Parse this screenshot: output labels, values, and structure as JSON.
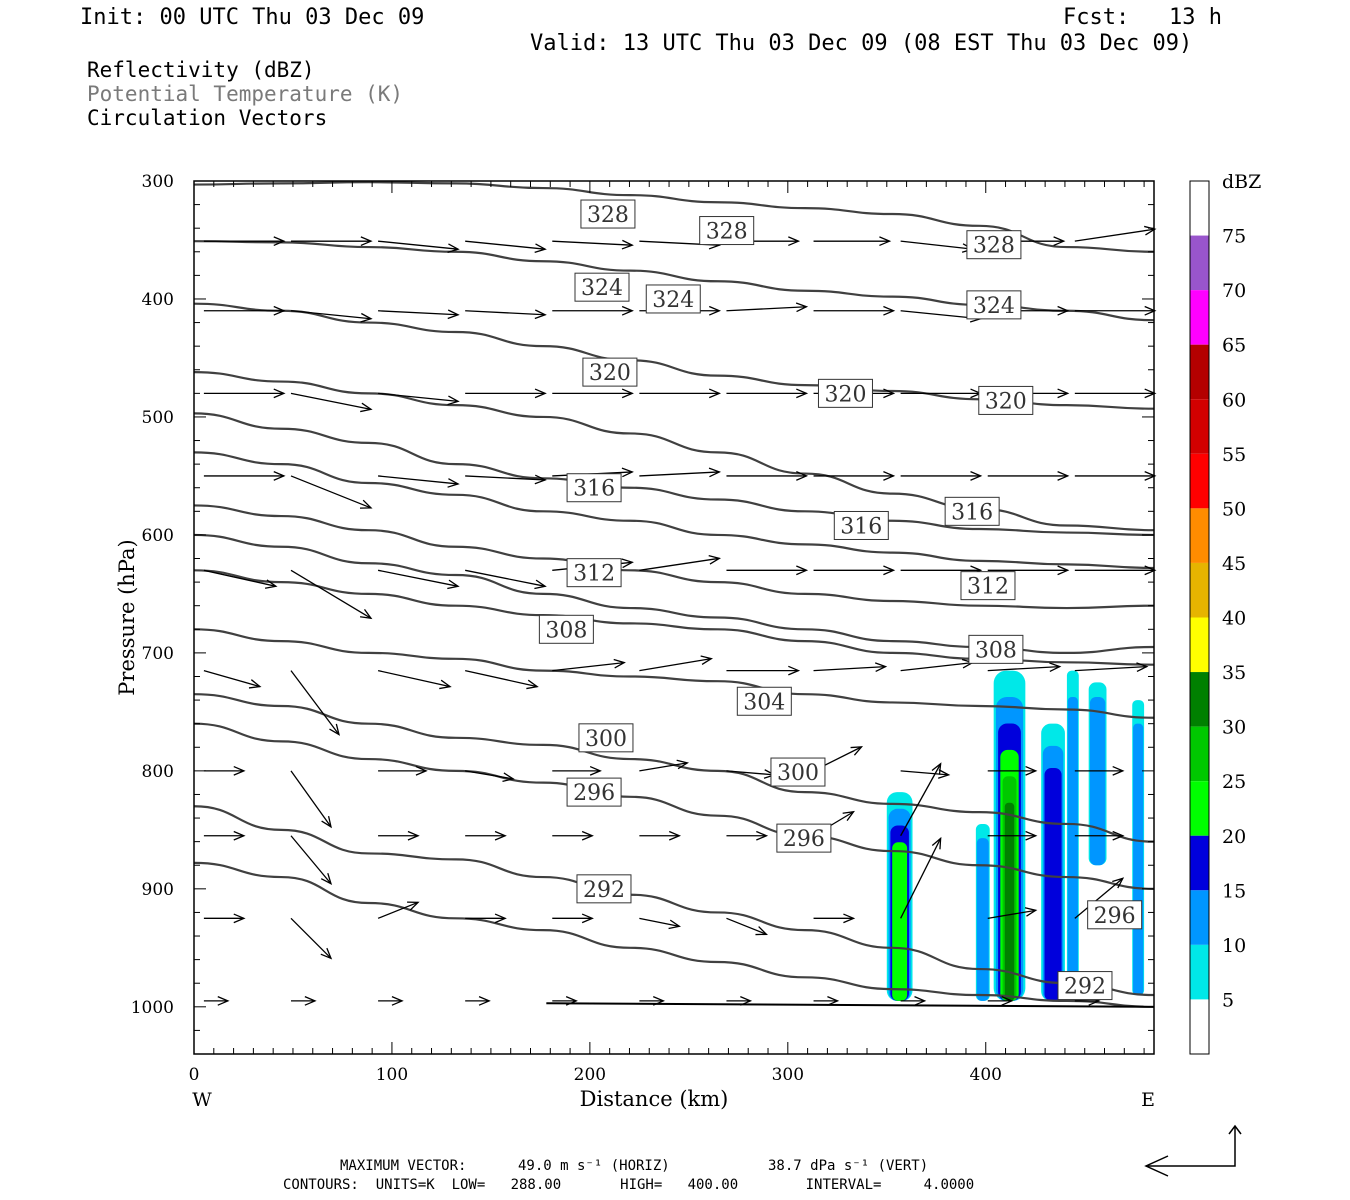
{
  "header": {
    "init": "Init: 00 UTC Thu 03 Dec 09",
    "fcst": "Fcst:   13 h",
    "valid": "Valid: 13 UTC Thu 03 Dec 09 (08 EST Thu 03 Dec 09)"
  },
  "fields": [
    "Reflectivity (dBZ)",
    "Potential Temperature (K)",
    "Circulation Vectors"
  ],
  "footer": {
    "max_vector_label": "MAXIMUM VECTOR:",
    "horiz": "49.0 m s⁻¹ (HORIZ)",
    "vert": "38.7 dPa s⁻¹ (VERT)",
    "contours": "CONTOURS:  UNITS=K  LOW=   288.00       HIGH=   400.00        INTERVAL=     4.0000"
  },
  "colors": {
    "contour": "#404040",
    "dbz": [
      "#ffffff",
      "#00e8e8",
      "#0096ff",
      "#0000dc",
      "#00ff00",
      "#00c800",
      "#008000",
      "#ffff00",
      "#e6b400",
      "#ff8c00",
      "#ff0000",
      "#d20000",
      "#b40000",
      "#ff00ff",
      "#9955cc",
      "#ffffff"
    ]
  },
  "chart_data": {
    "type": "cross-section",
    "xlabel": "Distance (km)",
    "ylabel": "Pressure (hPa)",
    "x_ends": [
      "W",
      "E"
    ],
    "xlim": [
      0,
      485
    ],
    "ylim": [
      1040,
      300
    ],
    "xticks": [
      0,
      100,
      200,
      300,
      400
    ],
    "yticks": [
      300,
      400,
      500,
      600,
      700,
      800,
      900,
      1000
    ],
    "colorbar": {
      "unit": "dBZ",
      "levels": [
        5,
        10,
        15,
        20,
        25,
        30,
        35,
        40,
        45,
        50,
        55,
        60,
        65,
        70,
        75
      ]
    },
    "contour_labels": [
      {
        "v": "328",
        "x": 197,
        "p": 328
      },
      {
        "v": "328",
        "x": 257,
        "p": 342
      },
      {
        "v": "328",
        "x": 392,
        "p": 354
      },
      {
        "v": "324",
        "x": 194,
        "p": 390
      },
      {
        "v": "324",
        "x": 230,
        "p": 400
      },
      {
        "v": "324",
        "x": 392,
        "p": 405
      },
      {
        "v": "320",
        "x": 198,
        "p": 462
      },
      {
        "v": "320",
        "x": 317,
        "p": 480
      },
      {
        "v": "320",
        "x": 398,
        "p": 486
      },
      {
        "v": "316",
        "x": 190,
        "p": 560
      },
      {
        "v": "316",
        "x": 325,
        "p": 592
      },
      {
        "v": "316",
        "x": 381,
        "p": 580
      },
      {
        "v": "312",
        "x": 190,
        "p": 632
      },
      {
        "v": "312",
        "x": 389,
        "p": 643
      },
      {
        "v": "308",
        "x": 176,
        "p": 680
      },
      {
        "v": "308",
        "x": 393,
        "p": 697
      },
      {
        "v": "304",
        "x": 276,
        "p": 741
      },
      {
        "v": "300",
        "x": 196,
        "p": 772
      },
      {
        "v": "300",
        "x": 293,
        "p": 801
      },
      {
        "v": "296",
        "x": 190,
        "p": 818
      },
      {
        "v": "296",
        "x": 296,
        "p": 857
      },
      {
        "v": "296",
        "x": 453,
        "p": 922
      },
      {
        "v": "292",
        "x": 195,
        "p": 900
      },
      {
        "v": "292",
        "x": 438,
        "p": 982
      }
    ],
    "contours": [
      {
        "p": [
          303,
          302,
          301,
          302,
          306,
          312,
          318,
          323,
          328,
          338,
          356,
          360
        ],
        "seg": "a"
      },
      {
        "p": [
          351,
          352,
          356,
          360,
          368,
          376,
          385,
          393,
          398,
          405,
          410,
          418
        ],
        "seg": "b"
      },
      {
        "p": [
          404,
          410,
          420,
          428,
          440,
          452,
          465,
          473,
          478,
          485,
          490,
          493
        ],
        "seg": "c"
      },
      {
        "p": [
          462,
          470,
          480,
          490,
          500,
          514,
          530,
          548,
          565,
          578,
          592,
          596
        ]
      },
      {
        "p": [
          497,
          510,
          522,
          540,
          552,
          560,
          570,
          580,
          588,
          595,
          598,
          600
        ]
      },
      {
        "p": [
          530,
          540,
          556,
          566,
          580,
          588,
          600,
          608,
          615,
          622,
          625,
          628
        ]
      },
      {
        "p": [
          575,
          584,
          596,
          610,
          620,
          630,
          640,
          650,
          656,
          660,
          662,
          660
        ]
      },
      {
        "p": [
          600,
          610,
          624,
          634,
          650,
          662,
          670,
          680,
          690,
          695,
          700,
          695
        ]
      },
      {
        "p": [
          630,
          640,
          650,
          660,
          668,
          675,
          680,
          690,
          700,
          705,
          708,
          710
        ]
      },
      {
        "p": [
          680,
          690,
          700,
          705,
          715,
          720,
          724,
          735,
          742,
          745,
          748,
          755
        ]
      },
      {
        "p": [
          735,
          745,
          760,
          772,
          778,
          790,
          800,
          818,
          828,
          835,
          845,
          860
        ]
      },
      {
        "p": [
          760,
          775,
          790,
          800,
          810,
          822,
          838,
          855,
          868,
          880,
          890,
          900
        ]
      },
      {
        "p": [
          830,
          850,
          870,
          875,
          890,
          905,
          920,
          935,
          950,
          968,
          980,
          990
        ]
      },
      {
        "p": [
          878,
          890,
          912,
          925,
          935,
          950,
          962,
          975,
          985,
          990,
          995,
          1000
        ]
      }
    ],
    "dbz_cells": [
      {
        "x": [
          350,
          363
        ],
        "p": [
          818,
          995
        ],
        "core": 18
      },
      {
        "x": [
          395,
          402
        ],
        "p": [
          845,
          995
        ],
        "core": 12
      },
      {
        "x": [
          404,
          420
        ],
        "p": [
          715,
          995
        ],
        "core": 28
      },
      {
        "x": [
          428,
          440
        ],
        "p": [
          760,
          995
        ],
        "core": 14
      },
      {
        "x": [
          441,
          447
        ],
        "p": [
          715,
          995
        ],
        "core": 9
      },
      {
        "x": [
          452,
          461
        ],
        "p": [
          725,
          880
        ],
        "core": 12
      },
      {
        "x": [
          474,
          480
        ],
        "p": [
          740,
          990
        ],
        "core": 9
      }
    ],
    "vectors": [
      {
        "p": 351,
        "u": [
          1.0,
          1.0,
          1.0,
          1.0,
          1.0,
          1.0,
          0.9,
          0.95,
          0.9,
          0.95,
          1.0
        ],
        "w": [
          0,
          0,
          -0.1,
          -0.1,
          -0.05,
          -0.05,
          0,
          0,
          -0.1,
          0,
          0.15
        ]
      },
      {
        "p": 410,
        "u": [
          1.0,
          1.0,
          1.0,
          1.0,
          1.0,
          1.0,
          1.0,
          1.0,
          1.0,
          1.0,
          1.0
        ],
        "w": [
          0,
          -0.1,
          -0.05,
          -0.05,
          0,
          0,
          0.05,
          0,
          -0.1,
          0,
          0
        ]
      },
      {
        "p": 480,
        "u": [
          1.0,
          1.0,
          1.0,
          1.0,
          1.0,
          1.0,
          1.0,
          1.0,
          1.0,
          1.0,
          1.0
        ],
        "w": [
          0,
          -0.2,
          -0.1,
          0,
          0,
          0,
          0,
          0,
          0,
          0,
          0
        ]
      },
      {
        "p": 550,
        "u": [
          1.0,
          1.0,
          1.0,
          1.0,
          1.0,
          1.0,
          1.0,
          1.0,
          1.0,
          1.0,
          1.0
        ],
        "w": [
          0,
          -0.4,
          -0.1,
          -0.05,
          0.05,
          0.05,
          0,
          0,
          0,
          0,
          0
        ]
      },
      {
        "p": 630,
        "u": [
          0.9,
          1.0,
          1.0,
          1.0,
          1.0,
          1.0,
          1.0,
          1.0,
          1.0,
          1.0,
          1.0
        ],
        "w": [
          -0.2,
          -0.6,
          -0.2,
          -0.2,
          0.1,
          0.15,
          0,
          0,
          0,
          0,
          0
        ]
      },
      {
        "p": 715,
        "u": [
          0.7,
          0.6,
          0.9,
          0.9,
          0.9,
          0.9,
          0.9,
          0.9,
          0.9,
          0.9,
          0.9
        ],
        "w": [
          -0.2,
          -0.8,
          -0.2,
          -0.2,
          0.1,
          0.15,
          0,
          0.05,
          0.1,
          0.05,
          0.05
        ]
      },
      {
        "p": 800,
        "u": [
          0.5,
          0.5,
          0.6,
          0.6,
          0.6,
          0.6,
          0.6,
          0.6,
          0.6,
          0.6,
          0.6
        ],
        "w": [
          0,
          -0.7,
          0,
          -0.1,
          0,
          0.1,
          -0.05,
          0.3,
          -0.05,
          0,
          0
        ]
      },
      {
        "p": 855,
        "u": [
          0.5,
          0.5,
          0.5,
          0.5,
          0.5,
          0.5,
          0.5,
          0.5,
          0.5,
          0.6,
          0.6
        ],
        "w": [
          0,
          -0.6,
          0,
          0,
          0,
          0,
          0,
          0.3,
          0.9,
          0,
          0
        ]
      },
      {
        "p": 925,
        "u": [
          0.5,
          0.5,
          0.5,
          0.5,
          0.5,
          0.5,
          0.5,
          0.5,
          0.5,
          0.6,
          0.6
        ],
        "w": [
          0,
          -0.5,
          0.2,
          0,
          0,
          -0.1,
          -0.2,
          0,
          1.0,
          0.1,
          0.5
        ]
      },
      {
        "p": 995,
        "u": [
          0.3,
          0.3,
          0.3,
          0.3,
          0.3,
          0.3,
          0.3,
          0.3,
          0.3,
          0.3,
          0.3
        ],
        "w": [
          0,
          0,
          0,
          0,
          0,
          0,
          0,
          0,
          0,
          0,
          0
        ]
      }
    ]
  }
}
